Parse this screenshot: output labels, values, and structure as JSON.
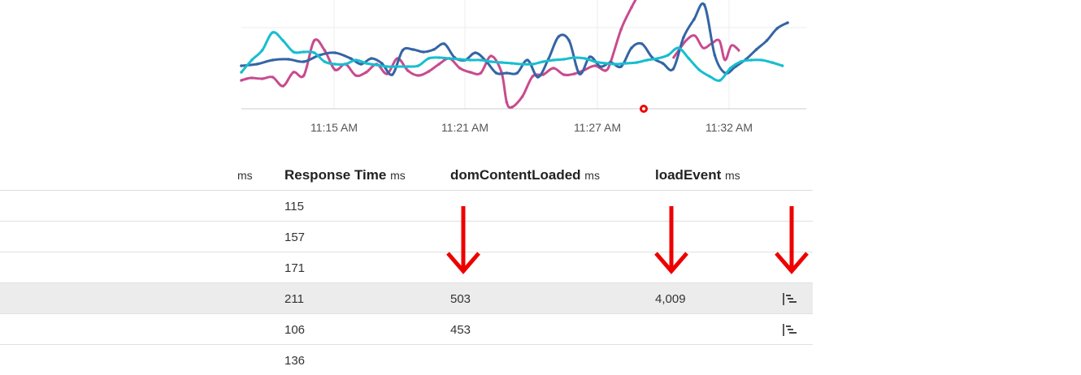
{
  "chart_data": {
    "type": "line",
    "x_ticks": [
      "11:15 AM",
      "11:21 AM",
      "11:27 AM",
      "11:32 AM"
    ],
    "series": [
      {
        "color": "#c84b8f",
        "points": [
          [
            0,
            35
          ],
          [
            5,
            37
          ],
          [
            10,
            38
          ],
          [
            20,
            37
          ],
          [
            30,
            39
          ],
          [
            40,
            28
          ],
          [
            50,
            45
          ],
          [
            60,
            41
          ],
          [
            70,
            84
          ],
          [
            80,
            72
          ],
          [
            90,
            48
          ],
          [
            100,
            55
          ],
          [
            110,
            41
          ],
          [
            120,
            45
          ],
          [
            130,
            55
          ],
          [
            140,
            43
          ],
          [
            150,
            62
          ],
          [
            160,
            47
          ],
          [
            170,
            41
          ],
          [
            180,
            46
          ],
          [
            190,
            55
          ],
          [
            200,
            62
          ],
          [
            210,
            50
          ],
          [
            220,
            45
          ],
          [
            230,
            44
          ],
          [
            240,
            65
          ],
          [
            250,
            45
          ],
          [
            255,
            8
          ],
          [
            260,
            2
          ],
          [
            270,
            15
          ],
          [
            280,
            40
          ],
          [
            290,
            42
          ],
          [
            300,
            50
          ],
          [
            310,
            42
          ],
          [
            320,
            43
          ],
          [
            330,
            48
          ],
          [
            340,
            53
          ],
          [
            350,
            47
          ],
          [
            355,
            58
          ],
          [
            365,
            98
          ],
          [
            375,
            125
          ],
          [
            385,
            148
          ]
        ],
        "segments2": [
          [
            [
              448,
              62
            ],
            [
              455,
              72
            ],
            [
              465,
              85
            ],
            [
              475,
              90
            ],
            [
              485,
              75
            ],
            [
              495,
              80
            ],
            [
              505,
              84
            ],
            [
              512,
              60
            ],
            [
              520,
              78
            ],
            [
              530,
              71
            ]
          ]
        ]
      },
      {
        "color": "#3465a4",
        "points": [
          [
            0,
            53
          ],
          [
            15,
            55
          ],
          [
            30,
            60
          ],
          [
            45,
            61
          ],
          [
            60,
            58
          ],
          [
            75,
            66
          ],
          [
            90,
            69
          ],
          [
            105,
            62
          ],
          [
            115,
            55
          ],
          [
            125,
            62
          ],
          [
            135,
            56
          ],
          [
            145,
            42
          ],
          [
            155,
            72
          ],
          [
            165,
            73
          ],
          [
            175,
            70
          ],
          [
            185,
            73
          ],
          [
            195,
            80
          ],
          [
            205,
            63
          ],
          [
            215,
            60
          ],
          [
            225,
            69
          ],
          [
            235,
            59
          ],
          [
            245,
            44
          ],
          [
            255,
            44
          ],
          [
            265,
            44
          ],
          [
            275,
            60
          ],
          [
            285,
            39
          ],
          [
            295,
            61
          ],
          [
            305,
            89
          ],
          [
            315,
            84
          ],
          [
            325,
            43
          ],
          [
            335,
            64
          ],
          [
            345,
            52
          ],
          [
            355,
            57
          ],
          [
            365,
            52
          ],
          [
            375,
            75
          ],
          [
            385,
            80
          ],
          [
            395,
            63
          ],
          [
            405,
            56
          ],
          [
            415,
            49
          ],
          [
            425,
            88
          ],
          [
            435,
            110
          ],
          [
            445,
            128
          ],
          [
            455,
            66
          ],
          [
            465,
            44
          ],
          [
            475,
            52
          ],
          [
            485,
            61
          ],
          [
            495,
            73
          ],
          [
            505,
            84
          ],
          [
            515,
            99
          ],
          [
            525,
            106
          ]
        ]
      },
      {
        "color": "#17becf",
        "points": [
          [
            0,
            45
          ],
          [
            10,
            60
          ],
          [
            20,
            72
          ],
          [
            30,
            94
          ],
          [
            40,
            84
          ],
          [
            50,
            70
          ],
          [
            60,
            70
          ],
          [
            70,
            69
          ],
          [
            80,
            58
          ],
          [
            90,
            55
          ],
          [
            100,
            55
          ],
          [
            110,
            60
          ],
          [
            120,
            56
          ],
          [
            130,
            54
          ],
          [
            140,
            52
          ],
          [
            150,
            52
          ],
          [
            160,
            52
          ],
          [
            170,
            53
          ],
          [
            180,
            62
          ],
          [
            190,
            63
          ],
          [
            200,
            62
          ],
          [
            210,
            61
          ],
          [
            220,
            60
          ],
          [
            230,
            60
          ],
          [
            240,
            58
          ],
          [
            250,
            57
          ],
          [
            260,
            56
          ],
          [
            270,
            55
          ],
          [
            280,
            55
          ],
          [
            290,
            58
          ],
          [
            300,
            60
          ],
          [
            310,
            61
          ],
          [
            320,
            63
          ],
          [
            330,
            62
          ],
          [
            340,
            58
          ],
          [
            350,
            56
          ],
          [
            360,
            55
          ],
          [
            370,
            56
          ],
          [
            380,
            57
          ],
          [
            390,
            60
          ],
          [
            400,
            62
          ],
          [
            410,
            66
          ],
          [
            420,
            75
          ],
          [
            430,
            62
          ],
          [
            440,
            48
          ],
          [
            450,
            40
          ],
          [
            460,
            35
          ],
          [
            470,
            50
          ],
          [
            480,
            58
          ],
          [
            490,
            60
          ],
          [
            500,
            60
          ],
          [
            510,
            57
          ],
          [
            520,
            53
          ]
        ]
      }
    ]
  },
  "table": {
    "headers": [
      {
        "label": "",
        "unit": "ms"
      },
      {
        "label": "Response Time",
        "unit": "ms"
      },
      {
        "label": "domContentLoaded",
        "unit": "ms"
      },
      {
        "label": "loadEvent",
        "unit": "ms"
      }
    ],
    "rows": [
      {
        "response_time": "115",
        "dom_content_loaded": "",
        "load_event": "",
        "trace_icon": false
      },
      {
        "response_time": "157",
        "dom_content_loaded": "",
        "load_event": "",
        "trace_icon": false
      },
      {
        "response_time": "171",
        "dom_content_loaded": "",
        "load_event": "",
        "trace_icon": false
      },
      {
        "response_time": "211",
        "dom_content_loaded": "503",
        "load_event": "4,009",
        "trace_icon": true,
        "highlighted": true
      },
      {
        "response_time": "106",
        "dom_content_loaded": "453",
        "load_event": "",
        "trace_icon": true
      },
      {
        "response_time": "136",
        "dom_content_loaded": "",
        "load_event": "",
        "trace_icon": false
      }
    ]
  },
  "annotation_color": "#ee0000"
}
